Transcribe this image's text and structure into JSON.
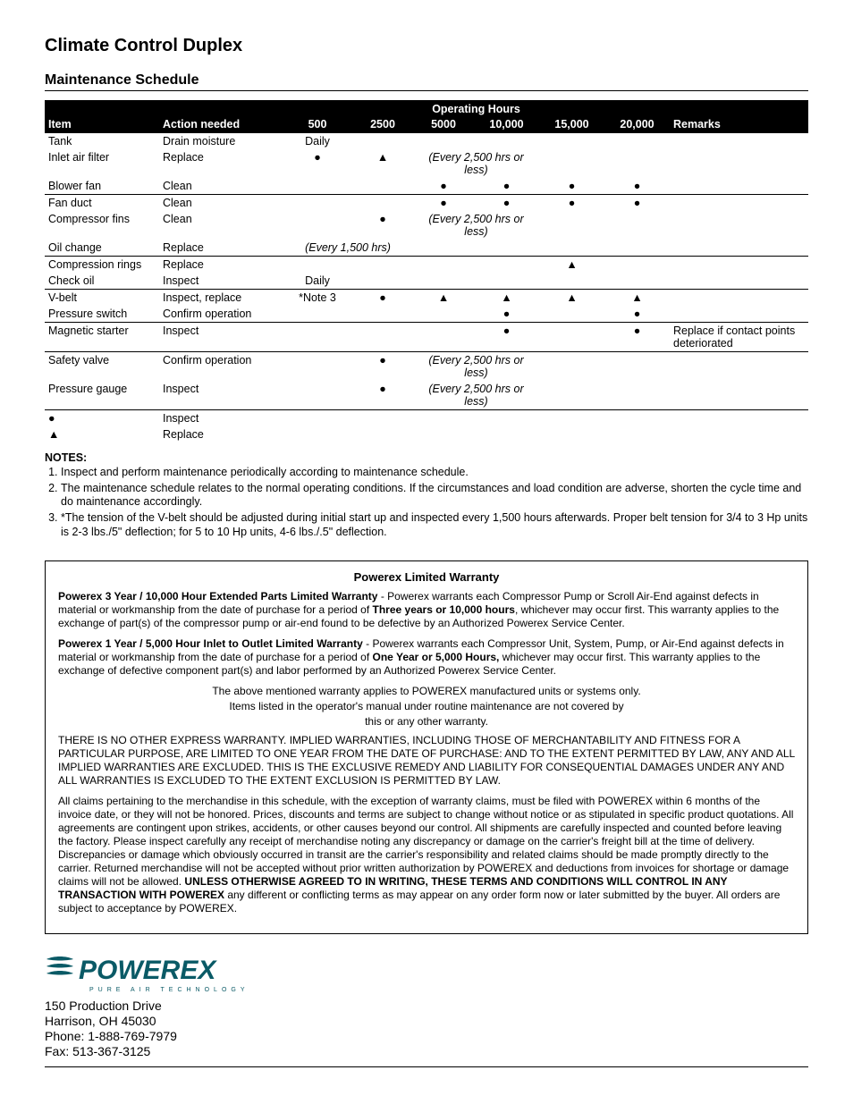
{
  "title": "Climate Control Duplex",
  "section_title": "Maintenance Schedule",
  "table": {
    "super_header": "Operating Hours",
    "columns": [
      "Item",
      "Action needed",
      "500",
      "2500",
      "5000",
      "10,000",
      "15,000",
      "20,000",
      "Remarks"
    ],
    "rows": [
      {
        "item": "Tank",
        "action": "Drain moisture",
        "c500": "Daily",
        "c2500": "",
        "c5000": "",
        "c10000": "",
        "c15000": "",
        "c20000": "",
        "remarks": "",
        "border": false
      },
      {
        "item": "Inlet air filter",
        "action": "Replace",
        "c500": "●",
        "c2500": "▲",
        "c5000": "",
        "c10000": "",
        "c15000": "",
        "c20000": "",
        "remarks": "",
        "border": false,
        "span_note": "(Every 2,500 hrs or less)"
      },
      {
        "item": "Blower fan",
        "action": "Clean",
        "c500": "",
        "c2500": "",
        "c5000": "●",
        "c10000": "●",
        "c15000": "●",
        "c20000": "●",
        "remarks": "",
        "border": true
      },
      {
        "item": "Fan duct",
        "action": "Clean",
        "c500": "",
        "c2500": "",
        "c5000": "●",
        "c10000": "●",
        "c15000": "●",
        "c20000": "●",
        "remarks": "",
        "border": false
      },
      {
        "item": "Compressor fins",
        "action": "Clean",
        "c500": "",
        "c2500": "●",
        "c5000": "",
        "c10000": "",
        "c15000": "",
        "c20000": "",
        "remarks": "",
        "border": false,
        "span_note": "(Every 2,500 hrs or less)"
      },
      {
        "item": "Oil change",
        "action": "Replace",
        "c500": "",
        "c2500": "",
        "c5000": "",
        "c10000": "",
        "c15000": "",
        "c20000": "",
        "remarks": "",
        "border": true,
        "pre_note": "(Every 1,500 hrs)"
      },
      {
        "item": "Compression rings",
        "action": "Replace",
        "c500": "",
        "c2500": "",
        "c5000": "",
        "c10000": "",
        "c15000": "▲",
        "c20000": "",
        "remarks": "",
        "border": false
      },
      {
        "item": "Check oil",
        "action": "Inspect",
        "c500": "Daily",
        "c2500": "",
        "c5000": "",
        "c10000": "",
        "c15000": "",
        "c20000": "",
        "remarks": "",
        "border": true
      },
      {
        "item": "V-belt",
        "action": "Inspect, replace",
        "c500": "*Note 3",
        "c2500": "●",
        "c5000": "▲",
        "c10000": "▲",
        "c15000": "▲",
        "c20000": "▲",
        "remarks": "",
        "border": false
      },
      {
        "item": "Pressure switch",
        "action": "Confirm operation",
        "c500": "",
        "c2500": "",
        "c5000": "",
        "c10000": "●",
        "c15000": "",
        "c20000": "●",
        "remarks": "",
        "border": true
      },
      {
        "item": "Magnetic starter",
        "action": "Inspect",
        "c500": "",
        "c2500": "",
        "c5000": "",
        "c10000": "●",
        "c15000": "",
        "c20000": "●",
        "remarks": "Replace if contact points deteriorated",
        "border": true
      },
      {
        "item": "Safety valve",
        "action": "Confirm operation",
        "c500": "",
        "c2500": "●",
        "c5000": "",
        "c10000": "",
        "c15000": "",
        "c20000": "",
        "remarks": "",
        "border": false,
        "span_note": "(Every 2,500 hrs or less)"
      },
      {
        "item": "Pressure gauge",
        "action": "Inspect",
        "c500": "",
        "c2500": "●",
        "c5000": "",
        "c10000": "",
        "c15000": "",
        "c20000": "",
        "remarks": "",
        "border": true,
        "span_note": "(Every 2,500 hrs or less)"
      }
    ],
    "legend": [
      {
        "symbol": "●",
        "label": "Inspect"
      },
      {
        "symbol": "▲",
        "label": "Replace"
      }
    ]
  },
  "notes_header": "NOTES:",
  "notes": [
    "Inspect and perform maintenance periodically according to maintenance schedule.",
    "The maintenance schedule relates to the normal operating conditions.  If the circumstances and load condition are adverse, shorten the cycle time and do maintenance accordingly.",
    "*The tension of the V-belt should be adjusted during initial start up and inspected every 1,500 hours afterwards.  Proper belt tension for 3/4 to 3 Hp units is 2-3 lbs./5\" deflection; for 5 to 10 Hp units, 4-6 lbs./.5\" deflection."
  ],
  "warranty": {
    "title": "Powerex Limited Warranty",
    "p1_bold": "Powerex 3 Year / 10,000 Hour Extended Parts Limited Warranty",
    "p1_rest_a": " - Powerex warrants each Compressor Pump or Scroll Air-End against defects in material or workmanship from the date of purchase for a period of ",
    "p1_bold2": "Three years or 10,000 hours",
    "p1_rest_b": ", whichever may occur first. This warranty applies to the exchange of part(s) of the compressor pump or air-end found to be defective by an Authorized Powerex Service Center.",
    "p2_bold": "Powerex 1 Year / 5,000 Hour Inlet to Outlet Limited Warranty",
    "p2_rest_a": " - Powerex warrants each Compressor Unit, System, Pump, or Air-End against defects in material or workmanship from the date of purchase for a period of ",
    "p2_bold2": "One Year or 5,000 Hours,",
    "p2_rest_b": " whichever may occur first. This warranty applies to the exchange of defective component part(s) and labor performed by an Authorized Powerex Service Center.",
    "center1": "The above mentioned warranty applies to POWEREX manufactured units or systems only.",
    "center2": "Items listed in the operator's manual under routine maintenance are not covered by",
    "center3": "this or any other warranty.",
    "p3": "THERE IS NO OTHER EXPRESS WARRANTY. IMPLIED WARRANTIES, INCLUDING THOSE OF MERCHANTABILITY AND FITNESS FOR A PARTICULAR PURPOSE, ARE LIMITED TO ONE YEAR FROM THE DATE OF PURCHASE: AND TO THE EXTENT PERMITTED BY LAW, ANY AND ALL IMPLIED WARRANTIES ARE EXCLUDED. THIS IS THE EXCLUSIVE REMEDY AND LIABILITY FOR CONSEQUENTIAL DAMAGES UNDER ANY AND ALL WARRANTIES IS EXCLUDED TO THE EXTENT EXCLUSION IS PERMITTED BY LAW.",
    "p4_a": "All claims pertaining to the merchandise in this schedule, with the exception of warranty claims, must be filed with POWEREX within 6 months of the invoice date, or they will not be honored. Prices, discounts and terms are subject to change without notice or as stipulated in specific product quotations. All agreements are contingent upon strikes, accidents, or other causes beyond our control. All shipments are carefully inspected and counted before leaving the factory. Please inspect carefully any receipt of merchandise noting any discrepancy or damage on the carrier's freight bill at the time of delivery. Discrepancies or damage which obviously occurred in transit are the carrier's responsibility and related claims should be made promptly directly to the carrier. Returned merchandise will not be accepted without prior written authorization by POWEREX and deductions from invoices for shortage or damage claims will not be allowed. ",
    "p4_bold": "UNLESS OTHERWISE AGREED TO IN WRITING, THESE TERMS AND CONDITIONS WILL CONTROL IN ANY TRANSACTION WITH POWEREX",
    "p4_b": " any different or conflicting terms as may appear on any order form now or later submitted by the buyer. All orders are subject to acceptance by POWEREX."
  },
  "footer": {
    "logo_text": "POWEREX",
    "logo_tagline": "PURE AIR TECHNOLOGY",
    "logo_color": "#0a5a66",
    "address": "150 Production Drive",
    "city": "Harrison, OH   45030",
    "phone": "Phone: 1-888-769-7979",
    "fax": "Fax: 513-367-3125"
  }
}
